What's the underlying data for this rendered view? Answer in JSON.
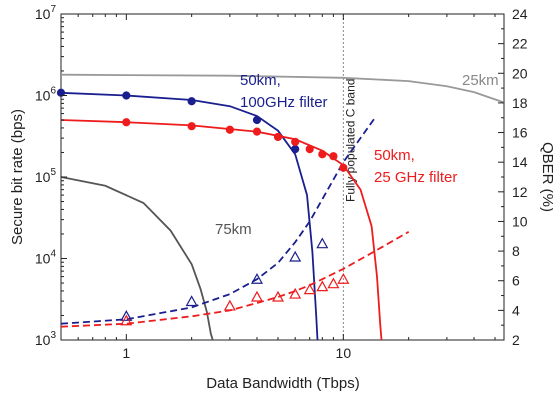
{
  "chart_data": {
    "type": "line",
    "xlabel": "Data Bandwidth (Tbps)",
    "ylabel_left": "Secure bit rate (bps)",
    "ylabel_right": "QBER (%)",
    "x_scale": "log",
    "y_left_scale": "log",
    "xlim": [
      0.5,
      55
    ],
    "ylim_left": [
      1000,
      10000000
    ],
    "ylim_right": [
      2,
      24
    ],
    "x_ticks": [
      1,
      10
    ],
    "x_tick_labels": [
      "1",
      "10"
    ],
    "y_left_ticks": [
      {
        "value": 1000,
        "base": "10",
        "exp": "3"
      },
      {
        "value": 10000,
        "base": "10",
        "exp": "4"
      },
      {
        "value": 100000,
        "base": "10",
        "exp": "5"
      },
      {
        "value": 1000000,
        "base": "10",
        "exp": "6"
      },
      {
        "value": 10000000,
        "base": "10",
        "exp": "7"
      }
    ],
    "y_right_ticks": [
      "2",
      "4",
      "6",
      "8",
      "10",
      "12",
      "14",
      "16",
      "18",
      "20",
      "22",
      "24"
    ],
    "grid": false,
    "vline": {
      "x": 10,
      "label": "Fully populated C band",
      "color": "#888888"
    },
    "annotations": [
      {
        "text": "50km,",
        "color": "#1a1f8f"
      },
      {
        "text": "100GHz filter",
        "color": "#1a1f8f"
      },
      {
        "text": "50km,",
        "color": "#ee1c1c"
      },
      {
        "text": "25 GHz filter",
        "color": "#ee1c1c"
      },
      {
        "text": "75km",
        "color": "#555555"
      },
      {
        "text": "25km",
        "color": "#888888"
      }
    ],
    "series": [
      {
        "axis": "left",
        "style": "solid",
        "color": "#1a1f8f",
        "x": [
          0.5,
          1,
          2,
          3,
          4,
          5,
          6,
          6.8,
          7.2,
          7.5,
          7.6
        ],
        "y": [
          1080000,
          1000000,
          880000,
          740000,
          560000,
          370000,
          190000,
          60000,
          12000,
          2000,
          1000
        ]
      },
      {
        "axis": "left",
        "style": "markers",
        "marker": "circle",
        "color": "#1a1f8f",
        "x": [
          0.5,
          1,
          2,
          4,
          6
        ],
        "y": [
          1080000,
          1000000,
          850000,
          500000,
          220000
        ]
      },
      {
        "axis": "left",
        "style": "solid",
        "color": "#ee1c1c",
        "x": [
          0.5,
          1,
          2,
          4,
          6,
          8,
          10,
          12,
          13.5,
          14.3,
          14.8,
          15
        ],
        "y": [
          500000,
          470000,
          430000,
          360000,
          290000,
          210000,
          140000,
          70000,
          25000,
          6000,
          1500,
          1000
        ]
      },
      {
        "axis": "left",
        "style": "markers",
        "marker": "circle",
        "color": "#ee1c1c",
        "x": [
          1,
          2,
          3,
          4,
          5,
          6,
          7,
          8,
          9,
          10
        ],
        "y": [
          470000,
          420000,
          380000,
          360000,
          310000,
          270000,
          220000,
          190000,
          180000,
          130000
        ]
      },
      {
        "axis": "left",
        "style": "solid",
        "color": "#555555",
        "x": [
          0.5,
          0.8,
          1.2,
          1.6,
          2,
          2.2,
          2.35,
          2.45,
          2.5
        ],
        "y": [
          100000,
          78000,
          48000,
          22000,
          8500,
          4200,
          2200,
          1200,
          1000
        ]
      },
      {
        "axis": "left",
        "style": "solid",
        "color": "#999999",
        "x": [
          0.5,
          1,
          3,
          10,
          20,
          30,
          40,
          55
        ],
        "y": [
          1800000,
          1780000,
          1750000,
          1650000,
          1500000,
          1300000,
          1100000,
          820000
        ]
      },
      {
        "axis": "right",
        "style": "dashed",
        "color": "#1a1f8f",
        "x": [
          0.5,
          1,
          2,
          3,
          4,
          5,
          6,
          7,
          8,
          10,
          14
        ],
        "y": [
          3.1,
          3.4,
          4.2,
          5.1,
          6.1,
          7.2,
          8.6,
          10.0,
          11.5,
          14.0,
          17.0
        ]
      },
      {
        "axis": "right",
        "style": "markers",
        "marker": "triangle",
        "color": "#1a1f8f",
        "x": [
          1,
          2,
          4,
          6,
          8
        ],
        "y": [
          3.6,
          4.6,
          6.1,
          7.6,
          8.5
        ]
      },
      {
        "axis": "right",
        "style": "dashed",
        "color": "#ee1c1c",
        "x": [
          0.5,
          1,
          2,
          3,
          4,
          5,
          6,
          7,
          8,
          10,
          14,
          20
        ],
        "y": [
          2.9,
          3.1,
          3.6,
          4.0,
          4.5,
          4.9,
          5.3,
          5.7,
          6.1,
          6.8,
          8.0,
          9.3
        ]
      },
      {
        "axis": "right",
        "style": "markers",
        "marker": "triangle",
        "color": "#ee1c1c",
        "x": [
          1,
          3,
          4,
          5,
          6,
          7,
          8,
          9,
          10
        ],
        "y": [
          3.3,
          4.3,
          4.9,
          4.9,
          5.1,
          5.4,
          5.6,
          5.8,
          6.1
        ]
      }
    ]
  }
}
